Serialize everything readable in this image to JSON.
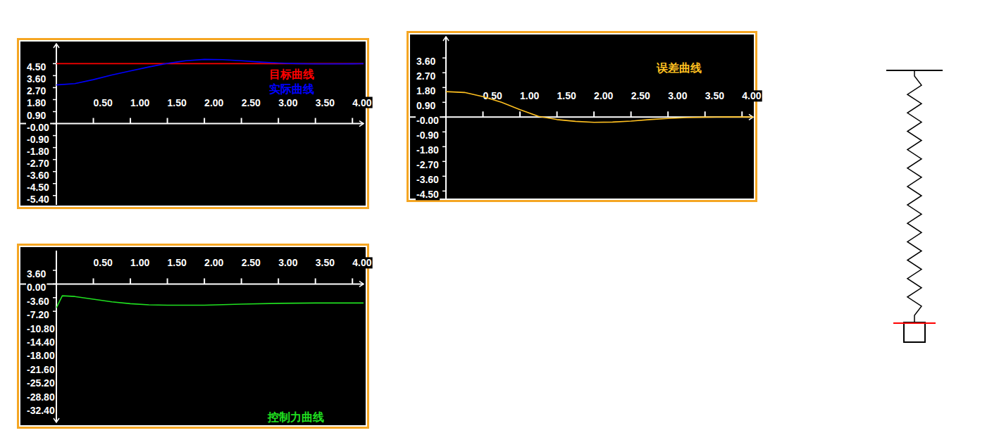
{
  "chart_data": [
    {
      "type": "line",
      "x": [
        0,
        0.25,
        0.5,
        0.75,
        1,
        1.25,
        1.5,
        1.75,
        2,
        2.25,
        2.5,
        2.75,
        3,
        3.25,
        3.5,
        3.75,
        4,
        4.15
      ],
      "series": [
        {
          "name": "目标曲线",
          "color": "#ff0000",
          "values": [
            4.5,
            4.5,
            4.5,
            4.5,
            4.5,
            4.5,
            4.5,
            4.5,
            4.5,
            4.5,
            4.5,
            4.5,
            4.5,
            4.5,
            4.5,
            4.5,
            4.5,
            4.5
          ]
        },
        {
          "name": "实际曲线",
          "color": "#0000ff",
          "values": [
            2.9,
            3.0,
            3.3,
            3.65,
            3.95,
            4.25,
            4.52,
            4.72,
            4.82,
            4.8,
            4.72,
            4.62,
            4.55,
            4.5,
            4.48,
            4.48,
            4.49,
            4.5
          ]
        }
      ],
      "xlim": [
        0,
        4.15
      ],
      "ylim": [
        -6.1,
        6
      ],
      "xticks": [
        {
          "value": 0.5,
          "label": "0.50"
        },
        {
          "value": 1,
          "label": "1.00"
        },
        {
          "value": 1.5,
          "label": "1.50"
        },
        {
          "value": 2,
          "label": "2.00"
        },
        {
          "value": 2.5,
          "label": "2.50"
        },
        {
          "value": 3,
          "label": "3.00"
        },
        {
          "value": 3.5,
          "label": "3.50"
        },
        {
          "value": 4,
          "label": "4.00"
        }
      ],
      "yticks": [
        {
          "value": 4.5,
          "label": "4.50"
        },
        {
          "value": 3.6,
          "label": "3.60"
        },
        {
          "value": 2.7,
          "label": "2.70"
        },
        {
          "value": 1.8,
          "label": "1.80"
        },
        {
          "value": 0.9,
          "label": "0.90"
        },
        {
          "value": 0,
          "label": "-0.00"
        },
        {
          "value": -0.9,
          "label": "-0.90"
        },
        {
          "value": -1.8,
          "label": "-1.80"
        },
        {
          "value": -2.7,
          "label": "-2.70"
        },
        {
          "value": -3.6,
          "label": "-3.60"
        },
        {
          "value": -4.5,
          "label": "-4.50"
        },
        {
          "value": -5.4,
          "label": "-5.40"
        }
      ],
      "legend": "right"
    },
    {
      "type": "line",
      "title": "误差曲线",
      "x": [
        0,
        0.25,
        0.5,
        0.75,
        1,
        1.25,
        1.5,
        1.75,
        2,
        2.25,
        2.5,
        2.75,
        3,
        3.25,
        3.5,
        3.75,
        4,
        4.15
      ],
      "series": [
        {
          "color": "#ffc020",
          "values": [
            1.55,
            1.5,
            1.25,
            0.9,
            0.45,
            0.05,
            -0.15,
            -0.26,
            -0.32,
            -0.3,
            -0.24,
            -0.15,
            -0.08,
            -0.03,
            0,
            0.01,
            0.01,
            0
          ]
        }
      ],
      "xlim": [
        0,
        4.15
      ],
      "ylim": [
        -5,
        4.9
      ],
      "xticks": [
        {
          "value": 0.5,
          "label": "0.50"
        },
        {
          "value": 1,
          "label": "1.00"
        },
        {
          "value": 1.5,
          "label": "1.50"
        },
        {
          "value": 2,
          "label": "2.00"
        },
        {
          "value": 2.5,
          "label": "2.50"
        },
        {
          "value": 3,
          "label": "3.00"
        },
        {
          "value": 3.5,
          "label": "3.50"
        },
        {
          "value": 4,
          "label": "4.00"
        }
      ],
      "yticks": [
        {
          "value": 3.6,
          "label": "3.60"
        },
        {
          "value": 2.7,
          "label": "2.70"
        },
        {
          "value": 1.8,
          "label": "1.80"
        },
        {
          "value": 0.9,
          "label": "0.90"
        },
        {
          "value": 0,
          "label": "-0.00"
        },
        {
          "value": -0.9,
          "label": "-0.90"
        },
        {
          "value": -1.8,
          "label": "-1.80"
        },
        {
          "value": -2.7,
          "label": "-2.70"
        },
        {
          "value": -3.6,
          "label": "-3.60"
        },
        {
          "value": -4.5,
          "label": "-4.50"
        }
      ]
    },
    {
      "type": "line",
      "title": "控制力曲线",
      "x": [
        0,
        0.08,
        0.25,
        0.5,
        0.75,
        1,
        1.25,
        1.5,
        2,
        2.5,
        3,
        3.5,
        4,
        4.15
      ],
      "series": [
        {
          "color": "#20e020",
          "values": [
            -6.3,
            -3.1,
            -3.3,
            -4.0,
            -4.7,
            -5.2,
            -5.5,
            -5.6,
            -5.6,
            -5.3,
            -5.1,
            -5.0,
            -5.0,
            -5.0
          ]
        }
      ],
      "xlim": [
        0,
        4.15
      ],
      "ylim": [
        -36.5,
        8.8
      ],
      "xticks": [
        {
          "value": 0.5,
          "label": "0.50"
        },
        {
          "value": 1,
          "label": "1.00"
        },
        {
          "value": 1.5,
          "label": "1.50"
        },
        {
          "value": 2,
          "label": "2.00"
        },
        {
          "value": 2.5,
          "label": "2.50"
        },
        {
          "value": 3,
          "label": "3.00"
        },
        {
          "value": 3.5,
          "label": "3.50"
        },
        {
          "value": 4,
          "label": "4.00"
        }
      ],
      "yticks": [
        {
          "value": 3.6,
          "label": "3.60"
        },
        {
          "value": 0,
          "label": "0.00"
        },
        {
          "value": -3.6,
          "label": "-3.60"
        },
        {
          "value": -7.2,
          "label": "-7.20"
        },
        {
          "value": -10.8,
          "label": "-10.80"
        },
        {
          "value": -14.4,
          "label": "-14.40"
        },
        {
          "value": -18,
          "label": "-18.00"
        },
        {
          "value": -21.6,
          "label": "-21.60"
        },
        {
          "value": -25.2,
          "label": "-25.20"
        },
        {
          "value": -28.8,
          "label": "-28.80"
        },
        {
          "value": -32.4,
          "label": "-32.40"
        }
      ]
    }
  ]
}
